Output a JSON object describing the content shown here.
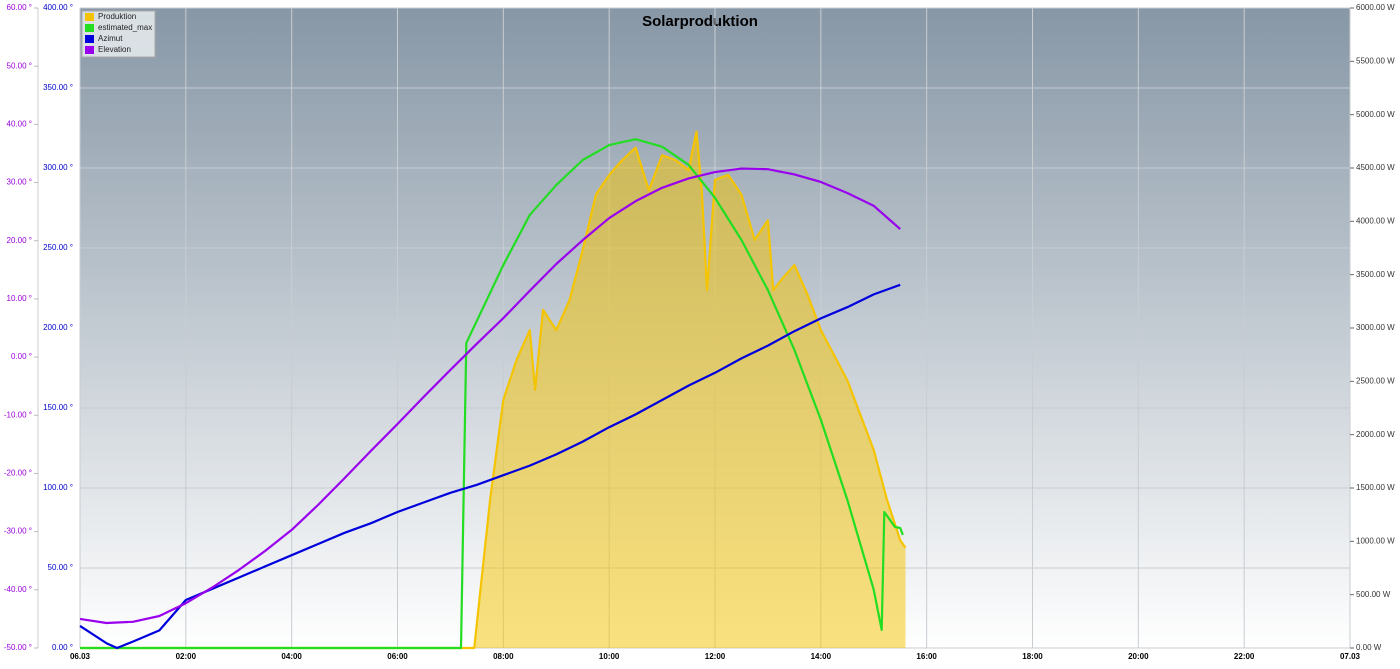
{
  "chart_data": {
    "type": "line",
    "title": "Solarproduktion",
    "xlim": [
      0,
      24
    ],
    "xticks": [
      {
        "value": 0,
        "label": "06.03"
      },
      {
        "value": 2,
        "label": "02:00"
      },
      {
        "value": 4,
        "label": "04:00"
      },
      {
        "value": 6,
        "label": "06:00"
      },
      {
        "value": 8,
        "label": "08:00"
      },
      {
        "value": 10,
        "label": "10:00"
      },
      {
        "value": 12,
        "label": "12:00"
      },
      {
        "value": 14,
        "label": "14:00"
      },
      {
        "value": 16,
        "label": "16:00"
      },
      {
        "value": 18,
        "label": "18:00"
      },
      {
        "value": 20,
        "label": "20:00"
      },
      {
        "value": 22,
        "label": "22:00"
      },
      {
        "value": 24,
        "label": "07.03"
      }
    ],
    "ylim": [
      0,
      6000
    ],
    "yticks": [
      {
        "value": 0,
        "label": "0.00 W"
      },
      {
        "value": 500,
        "label": "500.00 W"
      },
      {
        "value": 1000,
        "label": "1000.00 W"
      },
      {
        "value": 1500,
        "label": "1500.00 W"
      },
      {
        "value": 2000,
        "label": "2000.00 W"
      },
      {
        "value": 2500,
        "label": "2500.00 W"
      },
      {
        "value": 3000,
        "label": "3000.00 W"
      },
      {
        "value": 3500,
        "label": "3500.00 W"
      },
      {
        "value": 4000,
        "label": "4000.00 W"
      },
      {
        "value": 4500,
        "label": "4500.00 W"
      },
      {
        "value": 5000,
        "label": "5000.00 W"
      },
      {
        "value": 5500,
        "label": "5500.00 W"
      },
      {
        "value": 6000,
        "label": "6000.00 W"
      }
    ],
    "y2lim": [
      0,
      400
    ],
    "y2ticks": [
      {
        "value": 0,
        "label": "0.00 °"
      },
      {
        "value": 50,
        "label": "50.00 °"
      },
      {
        "value": 100,
        "label": "100.00 °"
      },
      {
        "value": 150,
        "label": "150.00 °"
      },
      {
        "value": 200,
        "label": "200.00 °"
      },
      {
        "value": 250,
        "label": "250.00 °"
      },
      {
        "value": 300,
        "label": "300.00 °"
      },
      {
        "value": 350,
        "label": "350.00 °"
      },
      {
        "value": 400,
        "label": "400.00 °"
      }
    ],
    "y2color": "#0000cc",
    "y3lim": [
      -50,
      60
    ],
    "y3ticks": [
      {
        "value": -50,
        "label": "-50.00 °"
      },
      {
        "value": -40,
        "label": "-40.00 °"
      },
      {
        "value": -30,
        "label": "-30.00 °"
      },
      {
        "value": -20,
        "label": "-20.00 °"
      },
      {
        "value": -10,
        "label": "-10.00 °"
      },
      {
        "value": 0,
        "label": "0.00 °"
      },
      {
        "value": 10,
        "label": "10.00 °"
      },
      {
        "value": 20,
        "label": "20.00 °"
      },
      {
        "value": 30,
        "label": "30.00 °"
      },
      {
        "value": 40,
        "label": "40.00 °"
      },
      {
        "value": 50,
        "label": "50.00 °"
      },
      {
        "value": 60,
        "label": "60.00 °"
      }
    ],
    "y3color": "#9900dd",
    "grid": true,
    "legend": "top-left",
    "series": [
      {
        "name": "Produktion",
        "color": "#f5c400",
        "axis": "y",
        "fill": true,
        "x": [
          0,
          7.45,
          7.75,
          8,
          8.25,
          8.5,
          8.6,
          8.75,
          9,
          9.25,
          9.5,
          9.75,
          10,
          10.25,
          10.5,
          10.75,
          11,
          11.25,
          11.5,
          11.65,
          11.75,
          11.85,
          12,
          12.25,
          12.5,
          12.75,
          13,
          13.1,
          13.25,
          13.5,
          13.75,
          14,
          14.5,
          15,
          15.25,
          15.5,
          15.6
        ],
        "values": [
          0,
          0,
          1390,
          2325,
          2700,
          2980,
          2420,
          3170,
          2980,
          3260,
          3730,
          4250,
          4435,
          4575,
          4690,
          4290,
          4620,
          4575,
          4480,
          4840,
          4290,
          3355,
          4390,
          4435,
          4250,
          3825,
          4010,
          3355,
          3450,
          3590,
          3310,
          2980,
          2510,
          1855,
          1390,
          1010,
          940
        ]
      },
      {
        "name": "estimated_max",
        "color": "#22dd22",
        "axis": "y",
        "x": [
          0,
          7.2,
          7.3,
          8,
          8.5,
          9,
          9.5,
          10,
          10.5,
          11,
          11.5,
          12,
          12.5,
          13,
          13.5,
          14,
          14.5,
          15,
          15.15,
          15.2,
          15.4,
          15.5,
          15.55
        ],
        "values": [
          0,
          0,
          2859,
          3590,
          4060,
          4340,
          4575,
          4715,
          4770,
          4700,
          4530,
          4220,
          3825,
          3355,
          2795,
          2140,
          1390,
          545,
          170,
          1275,
          1135,
          1125,
          1060
        ]
      },
      {
        "name": "Azimut",
        "color": "#0000dd",
        "axis": "y2",
        "x": [
          0,
          0.5,
          0.7,
          1,
          1.5,
          2,
          2.5,
          3,
          3.5,
          4,
          4.5,
          5,
          5.5,
          6,
          6.5,
          7,
          7.5,
          8,
          8.5,
          9,
          9.5,
          10,
          10.5,
          11,
          11.5,
          12,
          12.5,
          13,
          13.5,
          14,
          14.5,
          15,
          15.5
        ],
        "values": [
          13.8,
          3,
          0,
          4,
          11,
          30,
          37,
          44,
          51,
          58,
          65,
          72,
          78,
          85,
          91,
          97,
          102,
          108,
          114,
          121,
          129,
          138,
          146,
          155,
          164,
          172,
          181,
          189,
          198,
          206,
          213,
          221,
          227
        ]
      },
      {
        "name": "Elevation",
        "color": "#9900ee",
        "axis": "y3",
        "x": [
          0,
          0.5,
          1,
          1.5,
          2,
          2.5,
          3,
          3.5,
          4,
          4.5,
          5,
          5.5,
          6,
          6.5,
          7,
          7.5,
          8,
          8.5,
          9,
          9.5,
          10,
          10.5,
          11,
          11.5,
          12,
          12.5,
          13,
          13.5,
          14,
          14.5,
          15,
          15.5
        ],
        "values": [
          -45.0,
          -45.7,
          -45.5,
          -44.5,
          -42.3,
          -39.6,
          -36.6,
          -33.3,
          -29.7,
          -25.4,
          -20.8,
          -16.1,
          -11.5,
          -6.8,
          -2.2,
          2.3,
          6.7,
          11.4,
          16,
          20.1,
          23.9,
          26.8,
          29.1,
          30.7,
          31.8,
          32.4,
          32.3,
          31.4,
          30.1,
          28.2,
          26,
          22
        ]
      }
    ]
  }
}
